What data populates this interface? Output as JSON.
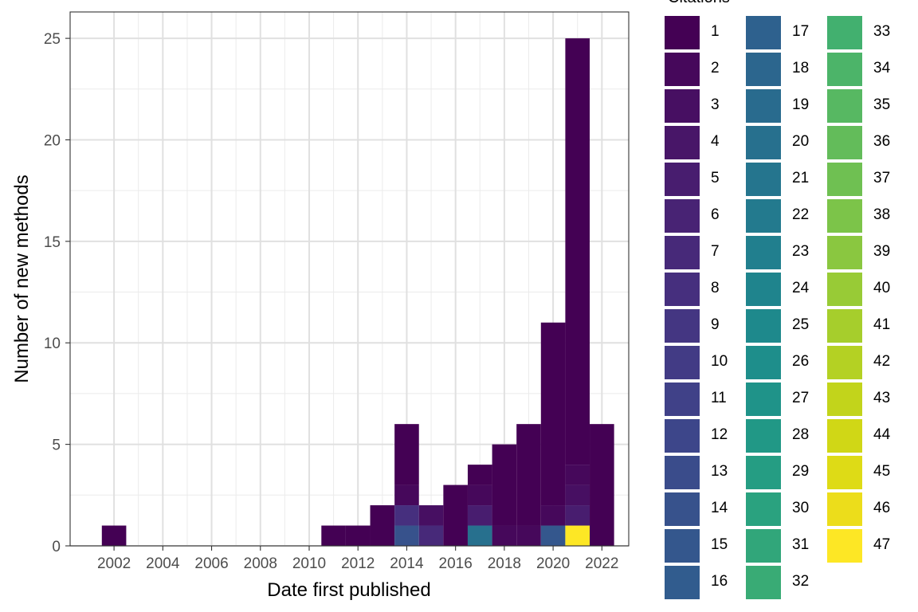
{
  "chart_data": {
    "type": "bar",
    "xlabel": "Date first published",
    "ylabel": "Number of new methods",
    "xlim": [
      2000.2,
      2023.1
    ],
    "ylim": [
      0,
      26.3
    ],
    "x_ticks": [
      2002,
      2004,
      2006,
      2008,
      2010,
      2012,
      2014,
      2016,
      2018,
      2020,
      2022
    ],
    "y_ticks": [
      0,
      5,
      10,
      15,
      20,
      25
    ],
    "grid": true,
    "legend_position": "right",
    "legend_title": "Citations",
    "colorscale": "viridis",
    "legend_items": [
      {
        "label": "1",
        "color": "#440154"
      },
      {
        "label": "2",
        "color": "#46085b"
      },
      {
        "label": "3",
        "color": "#470f62"
      },
      {
        "label": "4",
        "color": "#481668"
      },
      {
        "label": "5",
        "color": "#481d6f"
      },
      {
        "label": "6",
        "color": "#482374"
      },
      {
        "label": "7",
        "color": "#472979"
      },
      {
        "label": "8",
        "color": "#462f7e"
      },
      {
        "label": "9",
        "color": "#443682"
      },
      {
        "label": "10",
        "color": "#423b85"
      },
      {
        "label": "11",
        "color": "#404188"
      },
      {
        "label": "12",
        "color": "#3d468a"
      },
      {
        "label": "13",
        "color": "#3a4c8b"
      },
      {
        "label": "14",
        "color": "#37528c"
      },
      {
        "label": "15",
        "color": "#34578d"
      },
      {
        "label": "16",
        "color": "#315c8e"
      },
      {
        "label": "17",
        "color": "#2e618e"
      },
      {
        "label": "18",
        "color": "#2c668e"
      },
      {
        "label": "19",
        "color": "#296b8e"
      },
      {
        "label": "20",
        "color": "#27708e"
      },
      {
        "label": "21",
        "color": "#25758e"
      },
      {
        "label": "22",
        "color": "#237a8e"
      },
      {
        "label": "23",
        "color": "#217f8e"
      },
      {
        "label": "24",
        "color": "#1f848d"
      },
      {
        "label": "25",
        "color": "#1e898c"
      },
      {
        "label": "26",
        "color": "#1e8e8b"
      },
      {
        "label": "27",
        "color": "#1f9389"
      },
      {
        "label": "28",
        "color": "#219886"
      },
      {
        "label": "29",
        "color": "#259d83"
      },
      {
        "label": "30",
        "color": "#2aa27f"
      },
      {
        "label": "31",
        "color": "#31a67a"
      },
      {
        "label": "32",
        "color": "#39ab75"
      },
      {
        "label": "33",
        "color": "#42b06f"
      },
      {
        "label": "34",
        "color": "#4cb469"
      },
      {
        "label": "35",
        "color": "#57b862"
      },
      {
        "label": "36",
        "color": "#63bc5a"
      },
      {
        "label": "37",
        "color": "#6fc052"
      },
      {
        "label": "38",
        "color": "#7cc449"
      },
      {
        "label": "39",
        "color": "#8ac740"
      },
      {
        "label": "40",
        "color": "#98cb36"
      },
      {
        "label": "41",
        "color": "#a6ce2c"
      },
      {
        "label": "42",
        "color": "#b4d123"
      },
      {
        "label": "43",
        "color": "#c2d41b"
      },
      {
        "label": "44",
        "color": "#d0d716"
      },
      {
        "label": "45",
        "color": "#dedb16"
      },
      {
        "label": "46",
        "color": "#ecdd1b"
      },
      {
        "label": "47",
        "color": "#fde725"
      }
    ],
    "bars": [
      {
        "year": 2002,
        "total": 1,
        "segments": [
          {
            "citations": 1,
            "count": 1
          }
        ]
      },
      {
        "year": 2011,
        "total": 1,
        "segments": [
          {
            "citations": 1,
            "count": 1
          }
        ]
      },
      {
        "year": 2012,
        "total": 1,
        "segments": [
          {
            "citations": 1,
            "count": 1
          }
        ]
      },
      {
        "year": 2013,
        "total": 2,
        "segments": [
          {
            "citations": 1,
            "count": 2
          }
        ]
      },
      {
        "year": 2014,
        "total": 6,
        "segments": [
          {
            "citations": 14,
            "count": 1
          },
          {
            "citations": 8,
            "count": 1
          },
          {
            "citations": 2,
            "count": 1
          },
          {
            "citations": 1,
            "count": 3
          }
        ]
      },
      {
        "year": 2015,
        "total": 2,
        "segments": [
          {
            "citations": 7,
            "count": 1
          },
          {
            "citations": 3,
            "count": 1
          }
        ]
      },
      {
        "year": 2016,
        "total": 3,
        "segments": [
          {
            "citations": 1,
            "count": 3
          }
        ]
      },
      {
        "year": 2017,
        "total": 4,
        "segments": [
          {
            "citations": 20,
            "count": 1
          },
          {
            "citations": 5,
            "count": 1
          },
          {
            "citations": 2,
            "count": 1
          },
          {
            "citations": 1,
            "count": 1
          }
        ]
      },
      {
        "year": 2018,
        "total": 5,
        "segments": [
          {
            "citations": 2,
            "count": 1
          },
          {
            "citations": 1,
            "count": 4
          }
        ]
      },
      {
        "year": 2019,
        "total": 6,
        "segments": [
          {
            "citations": 2,
            "count": 1
          },
          {
            "citations": 1,
            "count": 5
          }
        ]
      },
      {
        "year": 2020,
        "total": 11,
        "segments": [
          {
            "citations": 15,
            "count": 1
          },
          {
            "citations": 2,
            "count": 1
          },
          {
            "citations": 1,
            "count": 9
          }
        ]
      },
      {
        "year": 2021,
        "total": 25,
        "segments": [
          {
            "citations": 47,
            "count": 1
          },
          {
            "citations": 5,
            "count": 1
          },
          {
            "citations": 3,
            "count": 1
          },
          {
            "citations": 2,
            "count": 1
          },
          {
            "citations": 1,
            "count": 21
          }
        ]
      },
      {
        "year": 2022,
        "total": 6,
        "segments": [
          {
            "citations": 1,
            "count": 6
          }
        ]
      }
    ]
  }
}
